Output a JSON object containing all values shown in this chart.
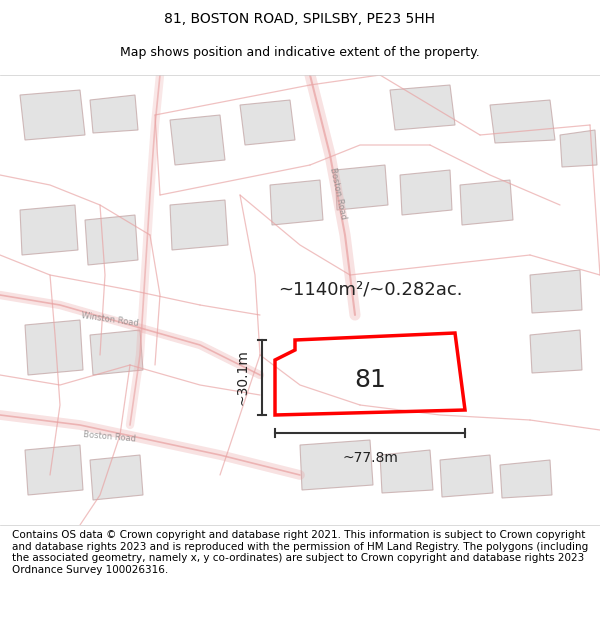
{
  "title_line1": "81, BOSTON ROAD, SPILSBY, PE23 5HH",
  "title_line2": "Map shows position and indicative extent of the property.",
  "footer_text": "Contains OS data © Crown copyright and database right 2021. This information is subject to Crown copyright and database rights 2023 and is reproduced with the permission of HM Land Registry. The polygons (including the associated geometry, namely x, y co-ordinates) are subject to Crown copyright and database rights 2023 Ordnance Survey 100026316.",
  "area_label": "~1140m²/~0.282ac.",
  "width_label": "~77.8m",
  "height_label": "~30.1m",
  "plot_number": "81",
  "bg_color": "#f5f5f5",
  "map_bg": "#ffffff",
  "road_line_color": "#e8a0a0",
  "building_color": "#d8d8d8",
  "building_edge": "#c0a0a0",
  "highlight_color": "#ff0000",
  "dim_line_color": "#333333",
  "title_fontsize": 10,
  "subtitle_fontsize": 9,
  "footer_fontsize": 7.5
}
